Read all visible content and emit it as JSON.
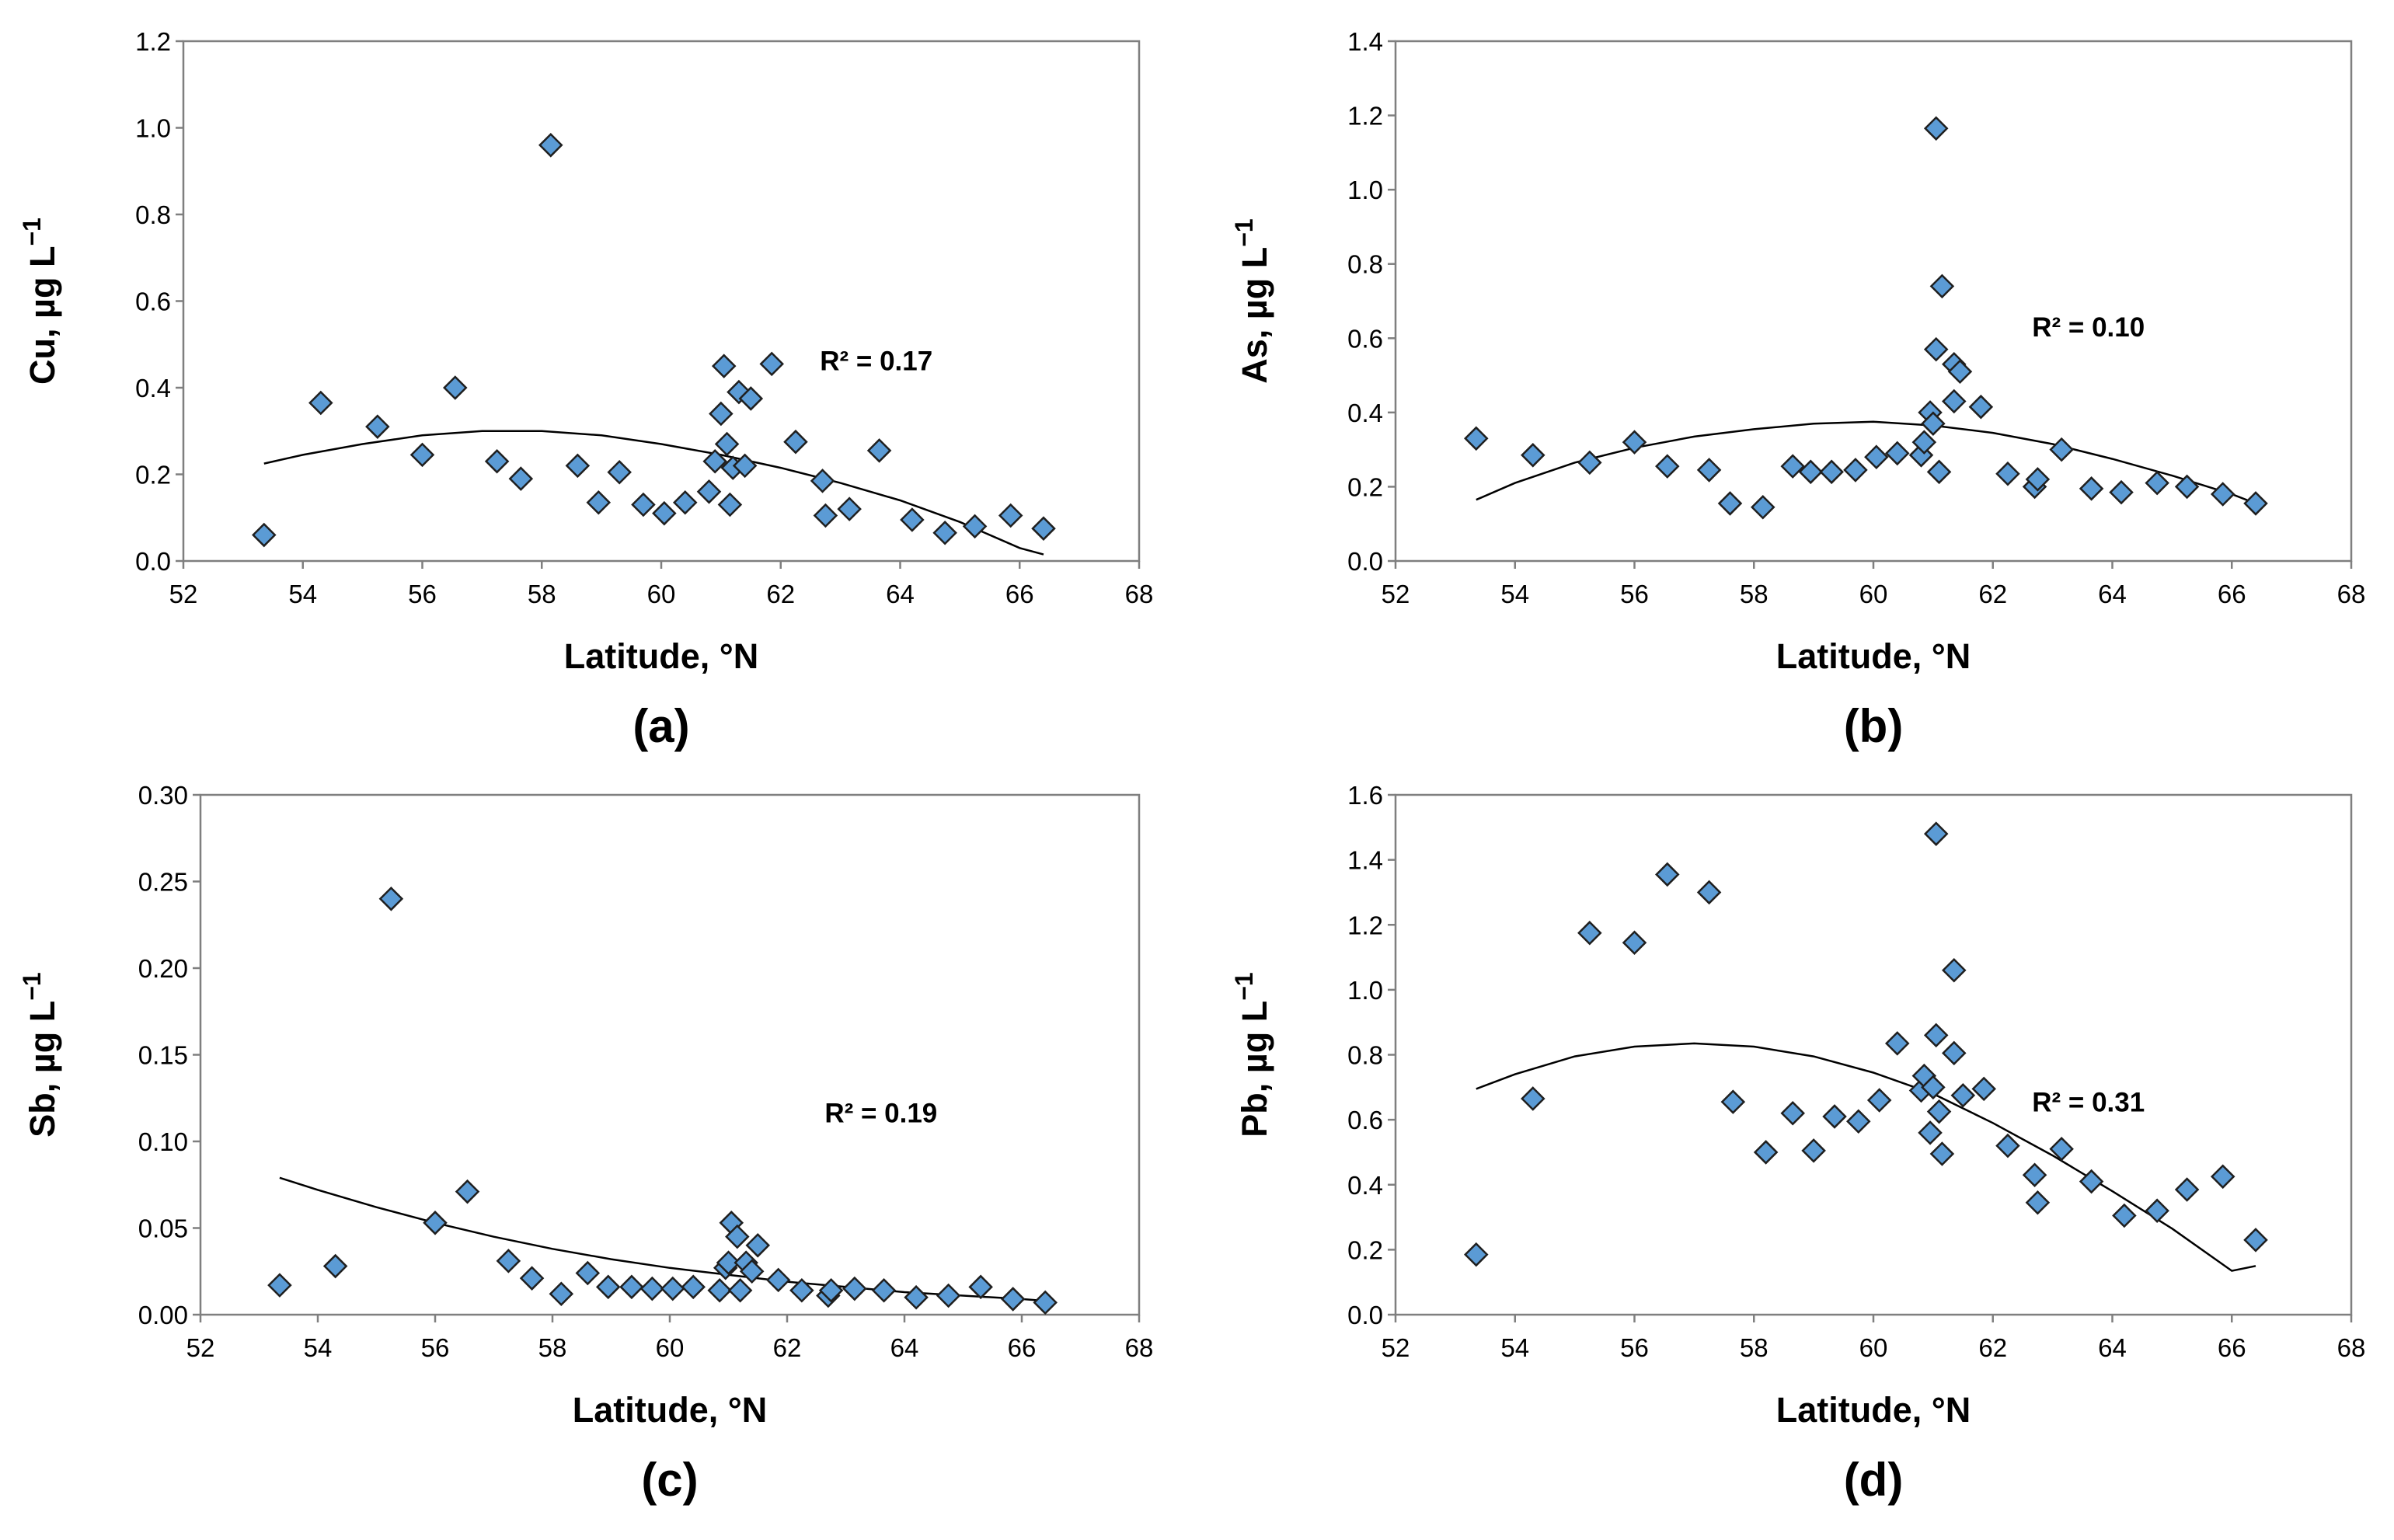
{
  "chart_data": [
    {
      "type": "scatter",
      "panel_label": "(a)",
      "xlabel": "Latitude, °N",
      "ylabel_prefix": "Cu, µg L",
      "ylabel_exp": "−1",
      "xlim": [
        52,
        68
      ],
      "ylim": [
        0,
        1.2
      ],
      "xticks": [
        52,
        54,
        56,
        58,
        60,
        62,
        64,
        66,
        68
      ],
      "yticks": [
        0,
        0.2,
        0.4,
        0.6,
        0.8,
        1.0,
        1.2
      ],
      "xtick_labels": [
        "52",
        "54",
        "56",
        "58",
        "60",
        "62",
        "64",
        "66",
        "68"
      ],
      "ytick_labels": [
        "0.0",
        "0.2",
        "0.4",
        "0.6",
        "0.8",
        "1.0",
        "1.2"
      ],
      "r2_label": "R² = 0.17",
      "r2_at": [
        63.6,
        0.44
      ],
      "grid": false,
      "points": [
        {
          "x": 53.35,
          "y": 0.06
        },
        {
          "x": 54.3,
          "y": 0.365
        },
        {
          "x": 55.25,
          "y": 0.31
        },
        {
          "x": 56.0,
          "y": 0.245
        },
        {
          "x": 56.55,
          "y": 0.4
        },
        {
          "x": 57.25,
          "y": 0.23
        },
        {
          "x": 57.65,
          "y": 0.19
        },
        {
          "x": 58.15,
          "y": 0.96
        },
        {
          "x": 58.6,
          "y": 0.22
        },
        {
          "x": 58.95,
          "y": 0.135
        },
        {
          "x": 59.3,
          "y": 0.205
        },
        {
          "x": 59.7,
          "y": 0.13
        },
        {
          "x": 60.05,
          "y": 0.11
        },
        {
          "x": 60.4,
          "y": 0.135
        },
        {
          "x": 60.8,
          "y": 0.16
        },
        {
          "x": 60.9,
          "y": 0.23
        },
        {
          "x": 61.0,
          "y": 0.34
        },
        {
          "x": 61.05,
          "y": 0.45
        },
        {
          "x": 61.1,
          "y": 0.27
        },
        {
          "x": 61.15,
          "y": 0.13
        },
        {
          "x": 61.2,
          "y": 0.215
        },
        {
          "x": 61.3,
          "y": 0.39
        },
        {
          "x": 61.4,
          "y": 0.22
        },
        {
          "x": 61.5,
          "y": 0.375
        },
        {
          "x": 61.85,
          "y": 0.455
        },
        {
          "x": 62.25,
          "y": 0.275
        },
        {
          "x": 62.7,
          "y": 0.185
        },
        {
          "x": 62.75,
          "y": 0.105
        },
        {
          "x": 63.15,
          "y": 0.12
        },
        {
          "x": 63.65,
          "y": 0.255
        },
        {
          "x": 64.2,
          "y": 0.095
        },
        {
          "x": 64.75,
          "y": 0.065
        },
        {
          "x": 65.25,
          "y": 0.08
        },
        {
          "x": 65.85,
          "y": 0.105
        },
        {
          "x": 66.4,
          "y": 0.075
        }
      ],
      "trendline": {
        "type": "polynomial-2",
        "x": [
          53.35,
          54,
          55,
          56,
          57,
          58,
          59,
          60,
          61,
          62,
          63,
          64,
          65,
          66,
          66.4
        ],
        "y": [
          0.225,
          0.245,
          0.27,
          0.29,
          0.3,
          0.3,
          0.29,
          0.27,
          0.245,
          0.215,
          0.18,
          0.14,
          0.09,
          0.03,
          0.015
        ]
      }
    },
    {
      "type": "scatter",
      "panel_label": "(b)",
      "xlabel": "Latitude, °N",
      "ylabel_prefix": "As, µg L",
      "ylabel_exp": "−1",
      "xlim": [
        52,
        68
      ],
      "ylim": [
        0,
        1.4
      ],
      "xticks": [
        52,
        54,
        56,
        58,
        60,
        62,
        64,
        66,
        68
      ],
      "yticks": [
        0,
        0.2,
        0.4,
        0.6,
        0.8,
        1.0,
        1.2,
        1.4
      ],
      "xtick_labels": [
        "52",
        "54",
        "56",
        "58",
        "60",
        "62",
        "64",
        "66",
        "68"
      ],
      "ytick_labels": [
        "0.0",
        "0.2",
        "0.4",
        "0.6",
        "0.8",
        "1.0",
        "1.2",
        "1.4"
      ],
      "r2_label": "R² = 0.10",
      "r2_at": [
        63.6,
        0.605
      ],
      "grid": false,
      "points": [
        {
          "x": 53.35,
          "y": 0.33
        },
        {
          "x": 54.3,
          "y": 0.285
        },
        {
          "x": 55.25,
          "y": 0.265
        },
        {
          "x": 56.0,
          "y": 0.32
        },
        {
          "x": 56.55,
          "y": 0.255
        },
        {
          "x": 57.25,
          "y": 0.245
        },
        {
          "x": 57.6,
          "y": 0.155
        },
        {
          "x": 58.15,
          "y": 0.145
        },
        {
          "x": 58.65,
          "y": 0.255
        },
        {
          "x": 58.95,
          "y": 0.24
        },
        {
          "x": 59.3,
          "y": 0.24
        },
        {
          "x": 59.7,
          "y": 0.245
        },
        {
          "x": 60.05,
          "y": 0.28
        },
        {
          "x": 60.4,
          "y": 0.29
        },
        {
          "x": 60.8,
          "y": 0.285
        },
        {
          "x": 60.85,
          "y": 0.32
        },
        {
          "x": 60.95,
          "y": 0.4
        },
        {
          "x": 61.0,
          "y": 0.37
        },
        {
          "x": 61.05,
          "y": 1.165
        },
        {
          "x": 61.05,
          "y": 0.57
        },
        {
          "x": 61.1,
          "y": 0.24
        },
        {
          "x": 61.15,
          "y": 0.74
        },
        {
          "x": 61.35,
          "y": 0.53
        },
        {
          "x": 61.35,
          "y": 0.43
        },
        {
          "x": 61.45,
          "y": 0.51
        },
        {
          "x": 61.8,
          "y": 0.415
        },
        {
          "x": 62.25,
          "y": 0.235
        },
        {
          "x": 62.7,
          "y": 0.2
        },
        {
          "x": 62.75,
          "y": 0.22
        },
        {
          "x": 63.15,
          "y": 0.3
        },
        {
          "x": 63.65,
          "y": 0.195
        },
        {
          "x": 64.15,
          "y": 0.185
        },
        {
          "x": 64.75,
          "y": 0.21
        },
        {
          "x": 65.25,
          "y": 0.2
        },
        {
          "x": 65.85,
          "y": 0.18
        },
        {
          "x": 66.4,
          "y": 0.155
        }
      ],
      "trendline": {
        "type": "polynomial-2",
        "x": [
          53.35,
          54,
          55,
          56,
          57,
          58,
          59,
          60,
          61,
          62,
          63,
          64,
          65,
          66,
          66.4
        ],
        "y": [
          0.165,
          0.21,
          0.265,
          0.305,
          0.335,
          0.355,
          0.37,
          0.375,
          0.365,
          0.345,
          0.315,
          0.275,
          0.23,
          0.18,
          0.155
        ]
      }
    },
    {
      "type": "scatter",
      "panel_label": "(c)",
      "xlabel": "Latitude, °N",
      "ylabel_prefix": "Sb, µg L",
      "ylabel_exp": "−1",
      "xlim": [
        52,
        68
      ],
      "ylim": [
        0,
        0.3
      ],
      "xticks": [
        52,
        54,
        56,
        58,
        60,
        62,
        64,
        66,
        68
      ],
      "yticks": [
        0,
        0.05,
        0.1,
        0.15,
        0.2,
        0.25,
        0.3
      ],
      "xtick_labels": [
        "52",
        "54",
        "56",
        "58",
        "60",
        "62",
        "64",
        "66",
        "68"
      ],
      "ytick_labels": [
        "0.00",
        "0.05",
        "0.10",
        "0.15",
        "0.20",
        "0.25",
        "0.30"
      ],
      "r2_label": "R² = 0.19",
      "r2_at": [
        63.6,
        0.111
      ],
      "grid": false,
      "points": [
        {
          "x": 53.35,
          "y": 0.017
        },
        {
          "x": 54.3,
          "y": 0.028
        },
        {
          "x": 55.25,
          "y": 0.24
        },
        {
          "x": 56.0,
          "y": 0.053
        },
        {
          "x": 56.55,
          "y": 0.071
        },
        {
          "x": 57.25,
          "y": 0.031
        },
        {
          "x": 57.65,
          "y": 0.021
        },
        {
          "x": 58.15,
          "y": 0.012
        },
        {
          "x": 58.6,
          "y": 0.024
        },
        {
          "x": 58.95,
          "y": 0.016
        },
        {
          "x": 59.35,
          "y": 0.016
        },
        {
          "x": 59.7,
          "y": 0.015
        },
        {
          "x": 60.05,
          "y": 0.015
        },
        {
          "x": 60.4,
          "y": 0.016
        },
        {
          "x": 60.85,
          "y": 0.014
        },
        {
          "x": 60.95,
          "y": 0.027
        },
        {
          "x": 61.0,
          "y": 0.03
        },
        {
          "x": 61.05,
          "y": 0.053
        },
        {
          "x": 61.15,
          "y": 0.045
        },
        {
          "x": 61.2,
          "y": 0.014
        },
        {
          "x": 61.3,
          "y": 0.03
        },
        {
          "x": 61.4,
          "y": 0.025
        },
        {
          "x": 61.5,
          "y": 0.04
        },
        {
          "x": 61.85,
          "y": 0.02
        },
        {
          "x": 62.25,
          "y": 0.014
        },
        {
          "x": 62.7,
          "y": 0.011
        },
        {
          "x": 62.75,
          "y": 0.014
        },
        {
          "x": 63.15,
          "y": 0.015
        },
        {
          "x": 63.65,
          "y": 0.014
        },
        {
          "x": 64.2,
          "y": 0.01
        },
        {
          "x": 64.75,
          "y": 0.011
        },
        {
          "x": 65.3,
          "y": 0.016
        },
        {
          "x": 65.85,
          "y": 0.009
        },
        {
          "x": 66.4,
          "y": 0.007
        }
      ],
      "trendline": {
        "type": "power",
        "x": [
          53.35,
          54,
          55,
          56,
          57,
          58,
          59,
          60,
          61,
          62,
          63,
          64,
          65,
          66,
          66.4
        ],
        "y": [
          0.079,
          0.072,
          0.062,
          0.053,
          0.045,
          0.038,
          0.032,
          0.027,
          0.023,
          0.019,
          0.016,
          0.013,
          0.011,
          0.009,
          0.008
        ]
      }
    },
    {
      "type": "scatter",
      "panel_label": "(d)",
      "xlabel": "Latitude, °N",
      "ylabel_prefix": "Pb, µg L",
      "ylabel_exp": "−1",
      "xlim": [
        52,
        68
      ],
      "ylim": [
        0,
        1.6
      ],
      "xticks": [
        52,
        54,
        56,
        58,
        60,
        62,
        64,
        66,
        68
      ],
      "yticks": [
        0,
        0.2,
        0.4,
        0.6,
        0.8,
        1.0,
        1.2,
        1.4,
        1.6
      ],
      "xtick_labels": [
        "52",
        "54",
        "56",
        "58",
        "60",
        "62",
        "64",
        "66",
        "68"
      ],
      "ytick_labels": [
        "0.0",
        "0.2",
        "0.4",
        "0.6",
        "0.8",
        "1.0",
        "1.2",
        "1.4",
        "1.6"
      ],
      "r2_label": "R² = 0.31",
      "r2_at": [
        63.6,
        0.625
      ],
      "grid": false,
      "points": [
        {
          "x": 53.35,
          "y": 0.185
        },
        {
          "x": 54.3,
          "y": 0.665
        },
        {
          "x": 55.25,
          "y": 1.175
        },
        {
          "x": 56.0,
          "y": 1.145
        },
        {
          "x": 56.55,
          "y": 1.355
        },
        {
          "x": 57.25,
          "y": 1.3
        },
        {
          "x": 57.65,
          "y": 0.655
        },
        {
          "x": 58.2,
          "y": 0.5
        },
        {
          "x": 58.65,
          "y": 0.62
        },
        {
          "x": 59.0,
          "y": 0.505
        },
        {
          "x": 59.35,
          "y": 0.61
        },
        {
          "x": 59.75,
          "y": 0.595
        },
        {
          "x": 60.1,
          "y": 0.66
        },
        {
          "x": 60.4,
          "y": 0.835
        },
        {
          "x": 60.8,
          "y": 0.69
        },
        {
          "x": 60.85,
          "y": 0.735
        },
        {
          "x": 60.95,
          "y": 0.56
        },
        {
          "x": 61.0,
          "y": 0.7
        },
        {
          "x": 61.05,
          "y": 1.48
        },
        {
          "x": 61.05,
          "y": 0.86
        },
        {
          "x": 61.1,
          "y": 0.625
        },
        {
          "x": 61.15,
          "y": 0.495
        },
        {
          "x": 61.35,
          "y": 1.06
        },
        {
          "x": 61.35,
          "y": 0.805
        },
        {
          "x": 61.5,
          "y": 0.675
        },
        {
          "x": 61.85,
          "y": 0.695
        },
        {
          "x": 62.25,
          "y": 0.52
        },
        {
          "x": 62.7,
          "y": 0.43
        },
        {
          "x": 62.75,
          "y": 0.345
        },
        {
          "x": 63.15,
          "y": 0.51
        },
        {
          "x": 63.65,
          "y": 0.41
        },
        {
          "x": 64.2,
          "y": 0.305
        },
        {
          "x": 64.75,
          "y": 0.32
        },
        {
          "x": 65.25,
          "y": 0.385
        },
        {
          "x": 65.85,
          "y": 0.425
        },
        {
          "x": 66.4,
          "y": 0.23
        }
      ],
      "trendline": {
        "type": "polynomial-2",
        "x": [
          53.35,
          54,
          55,
          56,
          57,
          58,
          59,
          60,
          61,
          62,
          63,
          64,
          65,
          66,
          66.4
        ],
        "y": [
          0.695,
          0.74,
          0.795,
          0.825,
          0.835,
          0.825,
          0.795,
          0.745,
          0.68,
          0.59,
          0.49,
          0.38,
          0.265,
          0.135,
          0.15
        ]
      }
    }
  ]
}
